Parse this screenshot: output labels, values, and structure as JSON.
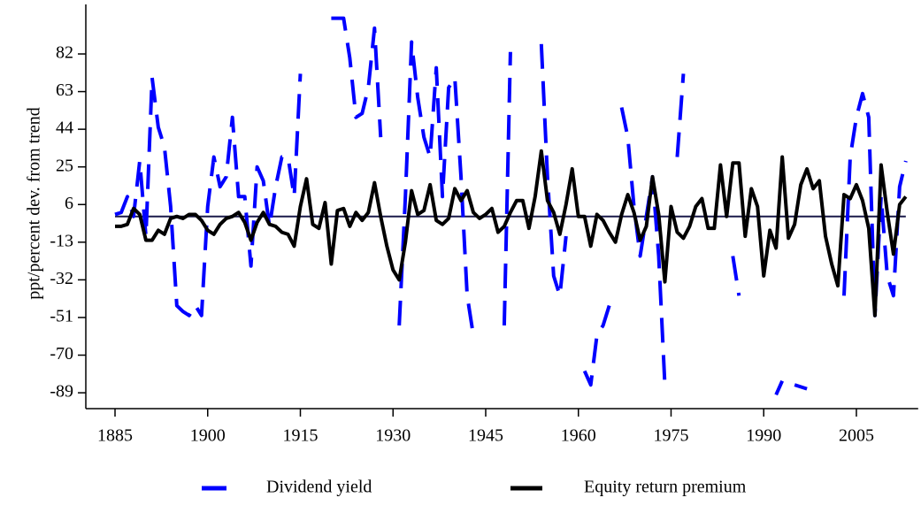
{
  "chart_data": {
    "type": "line",
    "y_label": "ppt/percent dev. from trend",
    "x": [
      1885,
      1886,
      1887,
      1888,
      1889,
      1890,
      1891,
      1892,
      1893,
      1894,
      1895,
      1896,
      1897,
      1898,
      1899,
      1900,
      1901,
      1902,
      1903,
      1904,
      1905,
      1906,
      1907,
      1908,
      1909,
      1910,
      1911,
      1912,
      1913,
      1914,
      1915,
      1916,
      1917,
      1918,
      1919,
      1920,
      1921,
      1922,
      1923,
      1924,
      1925,
      1926,
      1927,
      1928,
      1929,
      1930,
      1931,
      1932,
      1933,
      1934,
      1935,
      1936,
      1937,
      1938,
      1939,
      1940,
      1941,
      1942,
      1943,
      1944,
      1945,
      1946,
      1947,
      1948,
      1949,
      1950,
      1951,
      1952,
      1953,
      1954,
      1955,
      1956,
      1957,
      1958,
      1959,
      1960,
      1961,
      1962,
      1963,
      1964,
      1965,
      1966,
      1967,
      1968,
      1969,
      1970,
      1971,
      1972,
      1973,
      1974,
      1975,
      1976,
      1977,
      1978,
      1979,
      1980,
      1981,
      1982,
      1983,
      1984,
      1985,
      1986,
      1987,
      1988,
      1989,
      1990,
      1991,
      1992,
      1993,
      1994,
      1995,
      1996,
      1997,
      1998,
      1999,
      2000,
      2001,
      2002,
      2003,
      2004,
      2005,
      2006,
      2007,
      2008,
      2009,
      2010,
      2011,
      2012,
      2013
    ],
    "series": [
      {
        "name": "Dividend yield",
        "color": "#0000ff",
        "dashed": true,
        "values": [
          1,
          2,
          10,
          0,
          28,
          -10,
          70,
          45,
          35,
          5,
          -45,
          -48,
          -50,
          -45,
          -50,
          5,
          30,
          15,
          20,
          50,
          10,
          10,
          -25,
          25,
          18,
          -5,
          15,
          30,
          30,
          10,
          72,
          null,
          null,
          null,
          null,
          100,
          100,
          100,
          80,
          50,
          52,
          65,
          95,
          40,
          null,
          null,
          -55,
          10,
          88,
          60,
          40,
          30,
          75,
          10,
          65,
          70,
          20,
          -40,
          -60,
          null,
          null,
          null,
          null,
          -55,
          83,
          null,
          null,
          null,
          null,
          87,
          20,
          -30,
          -40,
          -10,
          null,
          null,
          -78,
          -85,
          -60,
          -55,
          -45,
          null,
          55,
          40,
          5,
          -20,
          0,
          20,
          -20,
          -85,
          null,
          30,
          72,
          null,
          null,
          null,
          null,
          null,
          null,
          null,
          -20,
          -40,
          null,
          null,
          null,
          null,
          null,
          -90,
          -83,
          null,
          -85,
          -86,
          -87,
          null,
          null,
          null,
          null,
          null,
          -40,
          30,
          50,
          62,
          50,
          -50,
          10,
          -30,
          -40,
          15,
          28
        ]
      },
      {
        "name": "Equity return premium",
        "color": "#000000",
        "dashed": false,
        "values": [
          -5,
          -5,
          -4,
          4,
          1,
          -12,
          -12,
          -7,
          -9,
          -1,
          0,
          -1,
          1,
          1,
          -2,
          -7,
          -9,
          -4,
          -1,
          0,
          2,
          -3,
          -12,
          -3,
          2,
          -4,
          -5,
          -8,
          -9,
          -15,
          5,
          19,
          -4,
          -6,
          7,
          -24,
          3,
          4,
          -5,
          2,
          -2,
          2,
          17,
          0,
          -15,
          -27,
          -32,
          -13,
          13,
          1,
          3,
          16,
          -2,
          -4,
          -1,
          14,
          8,
          13,
          2,
          -1,
          1,
          4,
          -8,
          -5,
          2,
          8,
          8,
          -6,
          10,
          33,
          8,
          2,
          -9,
          6,
          24,
          0,
          0,
          -15,
          1,
          -2,
          -8,
          -13,
          1,
          11,
          2,
          -12,
          -5,
          20,
          1,
          -33,
          5,
          -8,
          -11,
          -5,
          5,
          9,
          -6,
          -6,
          26,
          0,
          27,
          27,
          -10,
          14,
          5,
          -30,
          -7,
          -16,
          30,
          -11,
          -4,
          16,
          24,
          14,
          18,
          -10,
          -24,
          -35,
          11,
          9,
          16,
          8,
          -6,
          -50,
          26,
          2,
          -19,
          6,
          10
        ]
      }
    ],
    "reference_line": 0,
    "xlim": [
      1880,
      2015
    ],
    "xticks": [
      1885,
      1900,
      1915,
      1930,
      1945,
      1960,
      1975,
      1990,
      2005
    ],
    "ylim": [
      -97,
      107
    ],
    "yticks": [
      -89,
      -70,
      -51,
      -32,
      -13,
      6,
      25,
      44,
      63,
      82
    ],
    "legend": "bottom"
  }
}
